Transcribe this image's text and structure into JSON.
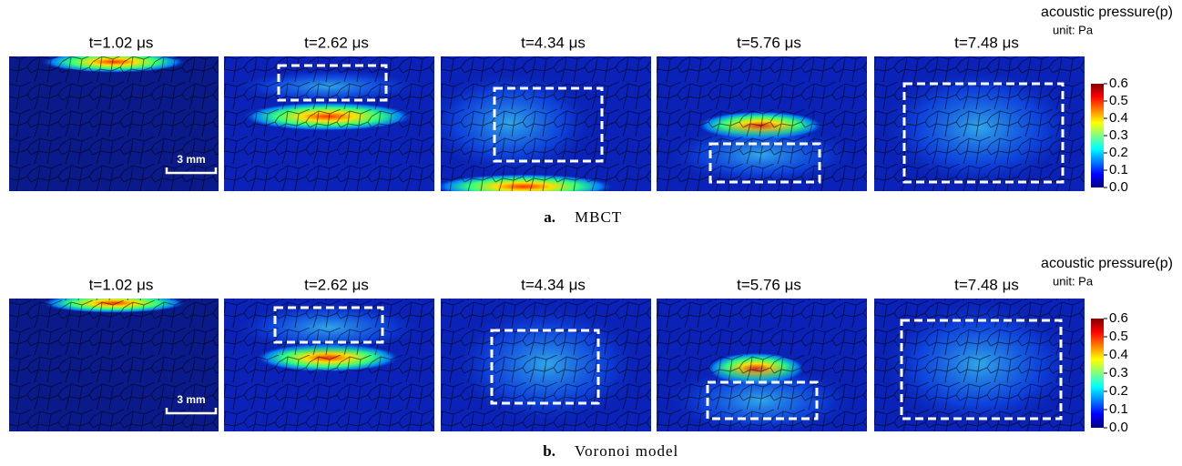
{
  "figure": {
    "rows": [
      {
        "panels": [
          "t=1.02 μs",
          "t=2.62 μs",
          "t=4.34 μs",
          "t=5.76 μs",
          "t=7.48 μs"
        ],
        "scale_bar": "3 mm",
        "colorbar": {
          "title": "acoustic pressure(p)",
          "unit": "unit: Pa",
          "range": [
            0,
            0.6
          ],
          "ticks": [
            {
              "value": 0,
              "label": "0.0"
            },
            0.1,
            0.2,
            0.3,
            0.4,
            0.5,
            0.6
          ]
        },
        "caption": {
          "label": "a.",
          "text": "MBCT"
        }
      },
      {
        "panels": [
          "t=1.02 μs",
          "t=2.62 μs",
          "t=4.34 μs",
          "t=5.76 μs",
          "t=7.48 μs"
        ],
        "scale_bar": "3 mm",
        "colorbar": {
          "title": "acoustic pressure(p)",
          "unit": "unit: Pa",
          "range": [
            0,
            0.6
          ],
          "ticks": [
            {
              "value": 0,
              "label": "0.0"
            },
            0.1,
            0.2,
            0.3,
            0.4,
            0.5,
            0.6
          ]
        },
        "caption": {
          "label": "b.",
          "text": "Voronoi model"
        }
      }
    ]
  }
}
